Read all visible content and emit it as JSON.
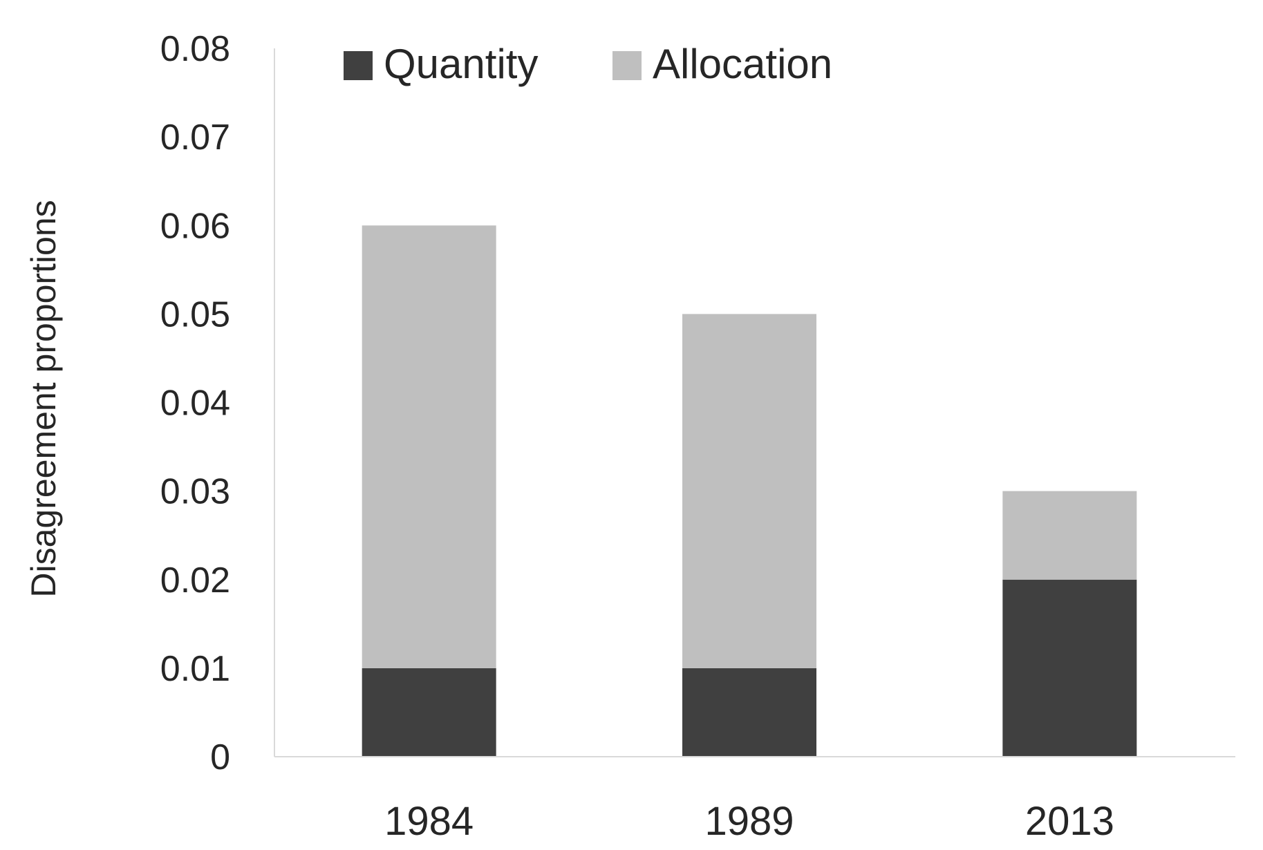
{
  "chart_data": {
    "type": "bar",
    "stacked": true,
    "title": "",
    "xlabel": "",
    "ylabel": "Disagreement proportions",
    "categories": [
      "1984",
      "1989",
      "2013"
    ],
    "series": [
      {
        "name": "Quantity",
        "values": [
          0.01,
          0.01,
          0.02
        ],
        "color": "#404040"
      },
      {
        "name": "Allocation",
        "values": [
          0.05,
          0.04,
          0.01
        ],
        "color": "#bfbfbf"
      }
    ],
    "ylim": [
      0,
      0.08
    ],
    "yticks": [
      "0",
      "0.01",
      "0.02",
      "0.03",
      "0.04",
      "0.05",
      "0.06",
      "0.07",
      "0.08"
    ],
    "grid": false,
    "legend": {
      "position": "top",
      "entries": [
        "Quantity",
        "Allocation"
      ]
    }
  }
}
